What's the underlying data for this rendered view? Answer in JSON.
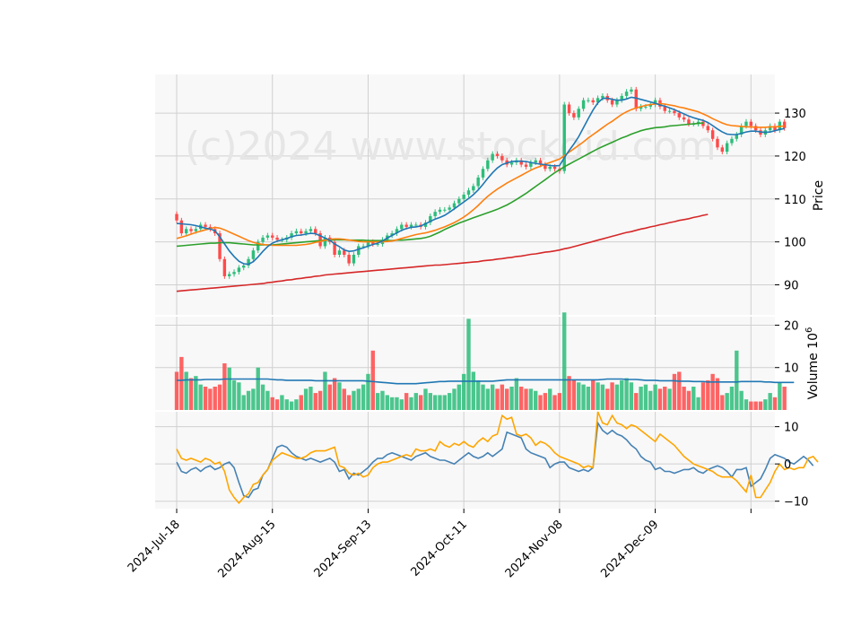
{
  "watermark": "(c)2024 www.stockoid.com",
  "colors": {
    "up": "#2dbd7a",
    "down": "#ff4a4a",
    "ma_short": "#1f77b4",
    "ma_mid": "#ff7f0e",
    "ma_long": "#2ca02c",
    "ma_200": "#d62728",
    "vol_ma": "#1f77b4",
    "osc_a": "#4682b4",
    "osc_b": "#ffa500",
    "panel_bg": "#f8f8f8",
    "grid": "#d0d0d0"
  },
  "chart_data": [
    {
      "panel": "price",
      "type": "candlestick",
      "ylabel": "Price",
      "ylim": [
        83,
        139
      ],
      "yticks": [
        90,
        100,
        110,
        120,
        130
      ],
      "xlim": [
        -4.5,
        125
      ],
      "xtick_positions": [
        0,
        20,
        40,
        60,
        80,
        100,
        120
      ],
      "xtick_labels": [
        "2024-Jul-18",
        "2024-Aug-15",
        "2024-Sep-13",
        "2024-Oct-11",
        "2024-Nov-08",
        "2024-Dec-09",
        ""
      ],
      "grid": true,
      "closes": [
        105,
        102,
        103,
        102.5,
        103,
        104,
        103.5,
        103,
        102,
        96,
        92,
        92.5,
        93,
        94,
        94.5,
        96,
        98,
        100,
        101,
        101.5,
        101,
        100.5,
        100.5,
        101,
        102,
        102.5,
        102,
        102.5,
        103,
        102,
        99,
        101,
        100,
        97,
        98,
        97,
        95,
        97,
        99,
        99,
        100,
        99.5,
        99.5,
        100.5,
        101.5,
        102,
        103,
        104,
        103.5,
        104,
        104,
        103.5,
        104.5,
        106,
        107,
        107.5,
        107.5,
        108,
        109,
        110,
        111,
        112,
        113,
        115,
        117,
        119,
        120.5,
        120,
        119,
        118,
        118.5,
        119,
        118,
        117.5,
        118.5,
        119,
        118,
        117,
        117.5,
        117,
        116.5,
        132,
        130,
        129,
        131,
        133,
        133,
        132.5,
        133.5,
        134,
        133,
        132,
        133,
        134,
        135,
        135.5,
        131,
        131.5,
        131.5,
        132,
        133,
        131.5,
        130.5,
        130.5,
        130,
        129,
        128.5,
        127.5,
        127.5,
        128,
        127,
        126,
        124,
        122,
        121,
        123,
        124,
        125,
        127,
        128,
        127,
        126,
        125,
        126,
        127,
        126,
        128,
        126.5
      ],
      "ma_short": [
        104.3,
        104.2,
        104.1,
        104,
        103.8,
        103.5,
        103.2,
        103,
        102.6,
        101.2,
        99.5,
        97.9,
        96.6,
        95.5,
        94.9,
        94.8,
        95.4,
        96.5,
        97.8,
        98.9,
        99.7,
        100.2,
        100.5,
        100.8,
        101.2,
        101.5,
        101.6,
        101.8,
        102,
        101.9,
        101.4,
        100.9,
        100.4,
        99.5,
        98.9,
        98.1,
        97.8,
        97.9,
        98.3,
        98.6,
        99,
        99.4,
        99.7,
        100.2,
        100.9,
        101.5,
        102.1,
        102.7,
        103.1,
        103.4,
        103.5,
        103.7,
        104.2,
        104.8,
        105.3,
        105.7,
        106.2,
        106.9,
        107.7,
        108.5,
        109.3,
        110.1,
        111,
        112.1,
        113.4,
        114.8,
        116.1,
        117.2,
        118,
        118.4,
        118.7,
        118.8,
        118.8,
        118.7,
        118.5,
        118.3,
        118.1,
        118,
        117.8,
        117.7,
        117.8,
        119.6,
        121.3,
        122.8,
        124.5,
        126.6,
        128.7,
        130.7,
        132.4,
        133.4,
        133.5,
        133.2,
        133,
        133,
        133.3,
        133.7,
        133.5,
        133.2,
        132.9,
        132.6,
        132.3,
        131.9,
        131.6,
        131.2,
        130.8,
        130.3,
        129.8,
        129.3,
        128.9,
        128.6,
        128.3,
        127.8,
        127.1,
        126.3,
        125.6,
        125.1,
        125,
        125,
        125.3,
        125.6,
        125.8,
        125.8,
        125.6,
        125.5,
        125.6,
        125.9,
        126.2,
        126.4
      ],
      "ma_mid": [
        100.8,
        101.1,
        101.4,
        101.8,
        102.2,
        102.5,
        102.8,
        103.1,
        103.4,
        103.2,
        102.8,
        102.3,
        101.8,
        101.3,
        100.8,
        100.3,
        99.9,
        99.6,
        99.4,
        99.3,
        99.2,
        99.2,
        99.2,
        99.2,
        99.2,
        99.2,
        99.3,
        99.4,
        99.6,
        99.9,
        100.1,
        100.4,
        100.6,
        100.7,
        100.7,
        100.6,
        100.4,
        100.3,
        100.1,
        100,
        100,
        100,
        100,
        100,
        100.1,
        100.2,
        100.5,
        100.8,
        101.1,
        101.4,
        101.7,
        101.9,
        102.1,
        102.4,
        102.7,
        103.1,
        103.5,
        104,
        104.5,
        105.1,
        105.8,
        106.6,
        107.5,
        108.5,
        109.6,
        110.6,
        111.5,
        112.3,
        113,
        113.7,
        114.3,
        114.9,
        115.5,
        116.1,
        116.7,
        117.2,
        117.6,
        118.1,
        118.5,
        118.9,
        119.3,
        120.1,
        120.9,
        121.7,
        122.5,
        123.3,
        124.2,
        125,
        125.8,
        126.6,
        127.4,
        128.1,
        128.9,
        129.7,
        130.3,
        130.8,
        131.2,
        131.5,
        131.8,
        132,
        132.1,
        132.2,
        132.1,
        131.9,
        131.7,
        131.4,
        131.2,
        130.9,
        130.6,
        130.3,
        129.8,
        129.3,
        128.7,
        128.2,
        127.7,
        127.3,
        127.1,
        127,
        126.9,
        126.8,
        126.8,
        126.7,
        126.7,
        126.7,
        126.8,
        126.8,
        126.9,
        127
      ],
      "ma_long": [
        99,
        99.1,
        99.2,
        99.3,
        99.4,
        99.5,
        99.6,
        99.7,
        99.7,
        99.8,
        99.8,
        99.8,
        99.7,
        99.6,
        99.5,
        99.4,
        99.3,
        99.3,
        99.3,
        99.3,
        99.3,
        99.4,
        99.5,
        99.6,
        99.7,
        99.8,
        99.9,
        100,
        100.1,
        100.2,
        100.3,
        100.4,
        100.4,
        100.5,
        100.5,
        100.5,
        100.4,
        100.4,
        100.4,
        100.4,
        100.3,
        100.3,
        100.3,
        100.3,
        100.3,
        100.3,
        100.4,
        100.4,
        100.5,
        100.6,
        100.7,
        100.8,
        101,
        101.3,
        101.8,
        102.3,
        102.9,
        103.4,
        103.9,
        104.4,
        104.8,
        105.2,
        105.6,
        106,
        106.4,
        106.8,
        107.2,
        107.6,
        108.1,
        108.6,
        109.2,
        109.9,
        110.6,
        111.3,
        112.1,
        112.9,
        113.7,
        114.5,
        115.3,
        116.1,
        116.8,
        117.5,
        118.1,
        118.7,
        119.3,
        119.9,
        120.5,
        121.1,
        121.7,
        122.2,
        122.7,
        123.2,
        123.7,
        124.2,
        124.6,
        125.1,
        125.5,
        125.9,
        126.2,
        126.4,
        126.6,
        126.7,
        126.8,
        127,
        127.1,
        127.2,
        127.3,
        127.4,
        127.5,
        127.6,
        127.7
      ],
      "ma_200": [
        88.5,
        88.6,
        88.7,
        88.8,
        88.9,
        89,
        89.1,
        89.2,
        89.3,
        89.4,
        89.5,
        89.6,
        89.7,
        89.8,
        89.9,
        90,
        90.1,
        90.2,
        90.3,
        90.5,
        90.6,
        90.8,
        90.9,
        91.1,
        91.2,
        91.4,
        91.5,
        91.7,
        91.8,
        92,
        92.1,
        92.3,
        92.4,
        92.5,
        92.6,
        92.7,
        92.8,
        92.9,
        93,
        93.1,
        93.2,
        93.3,
        93.4,
        93.5,
        93.6,
        93.7,
        93.8,
        93.9,
        94,
        94.1,
        94.2,
        94.3,
        94.4,
        94.5,
        94.6,
        94.6,
        94.7,
        94.8,
        94.9,
        95,
        95.1,
        95.2,
        95.3,
        95.4,
        95.6,
        95.7,
        95.8,
        96,
        96.1,
        96.3,
        96.4,
        96.6,
        96.7,
        96.9,
        97.1,
        97.2,
        97.4,
        97.6,
        97.7,
        97.9,
        98.1,
        98.4,
        98.6,
        98.9,
        99.2,
        99.5,
        99.8,
        100.1,
        100.4,
        100.7,
        101,
        101.3,
        101.6,
        101.9,
        102.2,
        102.4,
        102.7,
        103,
        103.2,
        103.5,
        103.7,
        104,
        104.2,
        104.5,
        104.7,
        105,
        105.2,
        105.4,
        105.7,
        105.9,
        106.2,
        106.4
      ]
    },
    {
      "panel": "volume",
      "type": "bar",
      "ylabel": "Volume  10^6",
      "ylim": [
        0,
        22
      ],
      "yticks": [
        10,
        20
      ],
      "grid": true,
      "volume_ma": [
        7,
        7,
        7.1,
        7.1,
        7.1,
        7.1,
        7.2,
        7.2,
        7.2,
        7.2,
        7.3,
        7.3,
        7.3,
        7.3,
        7.3,
        7.3,
        7.3,
        7.3,
        7.3,
        7.3,
        7.2,
        7.1,
        7.1,
        7,
        7,
        7,
        7,
        7,
        7,
        6.9,
        6.9,
        6.9,
        6.9,
        6.9,
        6.9,
        6.9,
        6.9,
        6.9,
        6.9,
        6.9,
        6.8,
        6.7,
        6.6,
        6.5,
        6.4,
        6.3,
        6.2,
        6.2,
        6.2,
        6.2,
        6.2,
        6.3,
        6.4,
        6.5,
        6.6,
        6.7,
        6.7,
        6.8,
        6.8,
        6.8,
        6.8,
        6.8,
        6.8,
        6.8,
        6.8,
        6.8,
        6.8,
        6.9,
        7,
        7.1,
        7.1,
        7.1,
        7.1,
        7.1,
        7.1,
        7.1,
        7.1,
        7.1,
        7.1,
        7.1,
        7.1,
        7.1,
        7.1,
        7.1,
        7.1,
        7.1,
        7.1,
        7.1,
        7.1,
        7.2,
        7.3,
        7.3,
        7.3,
        7.3,
        7.2,
        7.2,
        7.2,
        7.1,
        7,
        7,
        7,
        6.9,
        6.9,
        6.9,
        6.9,
        6.8,
        6.8,
        6.8,
        6.7,
        6.7,
        6.7,
        6.6,
        6.6,
        6.6,
        6.6,
        6.6,
        6.6,
        6.6,
        6.7,
        6.7,
        6.7,
        6.7,
        6.7,
        6.6,
        6.6,
        6.5,
        6.5,
        6.5,
        6.5,
        6.5
      ]
    },
    {
      "panel": "oscillator",
      "type": "line",
      "ylim": [
        -12,
        14
      ],
      "yticks": [
        -10,
        0,
        10
      ],
      "grid": true,
      "series": [
        {
          "key": "osc_a",
          "values": [
            0.5,
            -2,
            -2.5,
            -1.5,
            -1,
            -2,
            -1,
            -0.5,
            -1.5,
            -1,
            0,
            0.5,
            -1,
            -5,
            -8.5,
            -9,
            -7,
            -6.5,
            -3,
            -1.5,
            1.5,
            4.5,
            5,
            4.5,
            3,
            2,
            1.5,
            1,
            1.5,
            1,
            0.5,
            1,
            1.5,
            0.5,
            -2,
            -1.5,
            -4,
            -2.5,
            -3,
            -2,
            -1,
            0.5,
            1.5,
            1.5,
            2.5,
            3,
            2.5,
            2,
            1.5,
            1,
            2,
            2.5,
            3,
            2,
            1.5,
            1,
            1,
            0.5,
            0,
            1,
            2,
            3,
            2,
            1.5,
            2,
            3,
            2,
            3,
            4,
            8.5,
            8,
            7.5,
            7,
            4,
            3,
            2.5,
            2,
            1.5,
            -1,
            0,
            0.5,
            0.5,
            -1,
            -1.5,
            -2,
            -1.5,
            -2,
            -1,
            11,
            9,
            8,
            9,
            8,
            7.5,
            6.5,
            5,
            4,
            2,
            1,
            0.5,
            -1.5,
            -1,
            -2,
            -2,
            -2.5,
            -2,
            -1.5,
            -1.5,
            -1,
            -2,
            -2.5,
            -1.5,
            -1,
            -0.5,
            -1,
            -2,
            -3.5,
            -1.5,
            -1.5,
            -1,
            -6,
            -5,
            -4,
            -1.5,
            1.5,
            2.5,
            2,
            1.5,
            0.5,
            0,
            1,
            2,
            1,
            -0.5
          ]
        },
        {
          "key": "osc_b",
          "values": [
            4,
            1.5,
            1,
            1.5,
            1,
            0.5,
            1.5,
            1,
            0,
            0.5,
            -2,
            -7,
            -9,
            -10.5,
            -9,
            -8,
            -5.5,
            -5,
            -3,
            -1.5,
            1,
            2,
            3,
            2.5,
            2,
            1.5,
            1.5,
            2,
            3,
            3.5,
            3.5,
            3.5,
            4,
            4.5,
            -0.5,
            -1,
            -2.5,
            -3,
            -2.5,
            -3.5,
            -3,
            -1,
            0,
            0.5,
            0.5,
            1,
            1.5,
            2,
            2.5,
            2,
            4,
            3.5,
            3.5,
            4,
            3.5,
            6,
            5,
            4.5,
            5.5,
            5,
            6,
            5,
            4.5,
            6,
            7,
            6,
            7.5,
            8,
            13,
            12,
            12.5,
            8,
            7.5,
            8,
            7,
            5,
            6,
            5.5,
            4.5,
            3,
            2,
            1.5,
            1,
            0.5,
            0,
            -1,
            -0.5,
            -1,
            14,
            11,
            10.5,
            13,
            11,
            10.5,
            9.5,
            10.5,
            10,
            9,
            8,
            7,
            6,
            8,
            7,
            6,
            5,
            3.5,
            2,
            1,
            0,
            -0.5,
            -1,
            -1.5,
            -2,
            -3,
            -3.5,
            -3.5,
            -3.5,
            -4.5,
            -6,
            -7.5,
            -3,
            -9,
            -9,
            -7,
            -5,
            -2,
            0,
            -1.5,
            -1,
            -1.5,
            -1,
            -1,
            1.5,
            2,
            0.5
          ]
        }
      ]
    }
  ]
}
